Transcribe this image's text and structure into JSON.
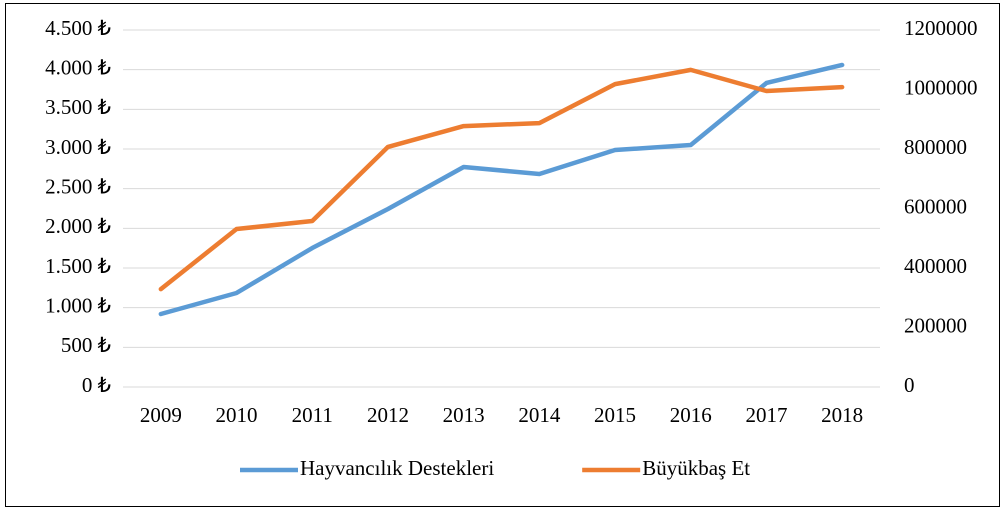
{
  "chart_data": {
    "type": "line",
    "categories": [
      "2009",
      "2010",
      "2011",
      "2012",
      "2013",
      "2014",
      "2015",
      "2016",
      "2017",
      "2018"
    ],
    "series": [
      {
        "name": "Hayvancılık Destekleri",
        "color": "#5b9bd5",
        "values": [
          920,
          1185,
          1752,
          2244,
          2773,
          2685,
          2987,
          3050,
          3832,
          4059
        ]
      },
      {
        "name": "Büyükbaş Et",
        "color": "#ed7d31",
        "axis": "y2",
        "values": [
          329000,
          531000,
          558000,
          807000,
          877000,
          887000,
          1018000,
          1066000,
          995000,
          1008000
        ]
      }
    ],
    "ylim": [
      0,
      4500
    ],
    "yticks": [
      {
        "value": 0,
        "label": "0 ₺"
      },
      {
        "value": 500,
        "label": "500 ₺"
      },
      {
        "value": 1000,
        "label": "1.000 ₺"
      },
      {
        "value": 1500,
        "label": "1.500 ₺"
      },
      {
        "value": 2000,
        "label": "2.000 ₺"
      },
      {
        "value": 2500,
        "label": "2.500 ₺"
      },
      {
        "value": 3000,
        "label": "3.000 ₺"
      },
      {
        "value": 3500,
        "label": "3.500 ₺"
      },
      {
        "value": 4000,
        "label": "4.000 ₺"
      },
      {
        "value": 4500,
        "label": "4.500 ₺"
      }
    ],
    "y2lim": [
      0,
      1200000
    ],
    "y2ticks": [
      0,
      200000,
      400000,
      600000,
      800000,
      1000000,
      1200000
    ],
    "grid": true,
    "legend": "bottom"
  }
}
